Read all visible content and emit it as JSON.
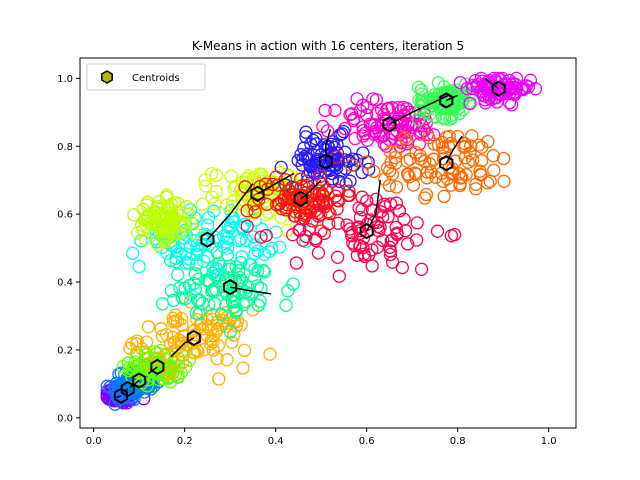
{
  "chart_data": {
    "type": "scatter",
    "title": "K-Means in action with 16 centers, iteration 5",
    "xlabel": "",
    "ylabel": "",
    "xlim": [
      -0.03,
      1.06
    ],
    "ylim": [
      -0.03,
      1.06
    ],
    "x_ticks": [
      "0.0",
      "0.2",
      "0.4",
      "0.6",
      "0.8",
      "1.0"
    ],
    "y_ticks": [
      "0.0",
      "0.2",
      "0.4",
      "0.6",
      "0.8",
      "1.0"
    ],
    "grid": false,
    "legend": {
      "position": "top-left",
      "entries": [
        "Centroids"
      ]
    },
    "centroid_color": "#b5b800",
    "clusters": [
      {
        "color": "#7f00ff",
        "centroid": [
          0.06,
          0.065
        ],
        "path": [
          [
            0.05,
            0.06
          ],
          [
            0.055,
            0.062
          ],
          [
            0.06,
            0.065
          ]
        ],
        "spread": [
          0.03,
          0.02
        ]
      },
      {
        "color": "#1e6bff",
        "centroid": [
          0.075,
          0.085
        ],
        "path": [
          [
            0.07,
            0.08
          ],
          [
            0.075,
            0.085
          ]
        ],
        "spread": [
          0.03,
          0.03
        ]
      },
      {
        "color": "#0080ff",
        "centroid": [
          0.1,
          0.11
        ],
        "path": [
          [
            0.08,
            0.09
          ],
          [
            0.1,
            0.11
          ]
        ],
        "spread": [
          0.03,
          0.03
        ]
      },
      {
        "color": "#66ff00",
        "centroid": [
          0.14,
          0.15
        ],
        "path": [
          [
            0.12,
            0.13
          ],
          [
            0.14,
            0.15
          ]
        ],
        "spread": [
          0.05,
          0.04
        ]
      },
      {
        "color": "#ffb000",
        "centroid": [
          0.22,
          0.235
        ],
        "path": [
          [
            0.17,
            0.18
          ],
          [
            0.2,
            0.22
          ],
          [
            0.22,
            0.235
          ]
        ],
        "spread": [
          0.1,
          0.07
        ]
      },
      {
        "color": "#00ff99",
        "centroid": [
          0.3,
          0.385
        ],
        "path": [
          [
            0.39,
            0.365
          ],
          [
            0.34,
            0.375
          ],
          [
            0.3,
            0.385
          ]
        ],
        "spread": [
          0.12,
          0.08
        ]
      },
      {
        "color": "#00ffee",
        "centroid": [
          0.25,
          0.525
        ],
        "path": [
          [
            0.35,
            0.69
          ],
          [
            0.3,
            0.6
          ],
          [
            0.25,
            0.525
          ]
        ],
        "spread": [
          0.12,
          0.07
        ]
      },
      {
        "color": "#ccff00",
        "centroid": [
          0.36,
          0.66
        ],
        "path": [
          [
            0.44,
            0.72
          ],
          [
            0.4,
            0.69
          ],
          [
            0.36,
            0.66
          ]
        ],
        "spread": [
          0.08,
          0.06
        ]
      },
      {
        "color": "#2a1aff",
        "centroid": [
          0.51,
          0.755
        ],
        "path": [
          [
            0.52,
            0.85
          ],
          [
            0.51,
            0.8
          ],
          [
            0.51,
            0.755
          ]
        ],
        "spread": [
          0.07,
          0.06
        ]
      },
      {
        "color": "#ff1a00",
        "centroid": [
          0.455,
          0.645
        ],
        "path": [
          [
            0.5,
            0.7
          ],
          [
            0.47,
            0.66
          ],
          [
            0.455,
            0.645
          ]
        ],
        "spread": [
          0.08,
          0.06
        ]
      },
      {
        "color": "#ff004c",
        "centroid": [
          0.6,
          0.55
        ],
        "path": [
          [
            0.63,
            0.7
          ],
          [
            0.62,
            0.6
          ],
          [
            0.6,
            0.55
          ]
        ],
        "spread": [
          0.14,
          0.1
        ]
      },
      {
        "color": "#ff00cc",
        "centroid": [
          0.65,
          0.865
        ],
        "path": [
          [
            0.78,
            0.95
          ],
          [
            0.7,
            0.9
          ],
          [
            0.65,
            0.865
          ]
        ],
        "spread": [
          0.1,
          0.06
        ]
      },
      {
        "color": "#ff6a00",
        "centroid": [
          0.775,
          0.75
        ],
        "path": [
          [
            0.81,
            0.83
          ],
          [
            0.79,
            0.79
          ],
          [
            0.775,
            0.75
          ]
        ],
        "spread": [
          0.13,
          0.08
        ]
      },
      {
        "color": "#33ff55",
        "centroid": [
          0.775,
          0.935
        ],
        "path": [
          [
            0.8,
            0.95
          ],
          [
            0.775,
            0.935
          ]
        ],
        "spread": [
          0.05,
          0.04
        ]
      },
      {
        "color": "#ee00ff",
        "centroid": [
          0.89,
          0.97
        ],
        "path": [
          [
            0.86,
            1.0
          ],
          [
            0.89,
            0.97
          ]
        ],
        "spread": [
          0.06,
          0.03
        ]
      },
      {
        "color": "#bbff00",
        "centroid": [
          0.155,
          0.58
        ],
        "path": [],
        "spread": [
          0.05,
          0.05
        ]
      }
    ]
  }
}
